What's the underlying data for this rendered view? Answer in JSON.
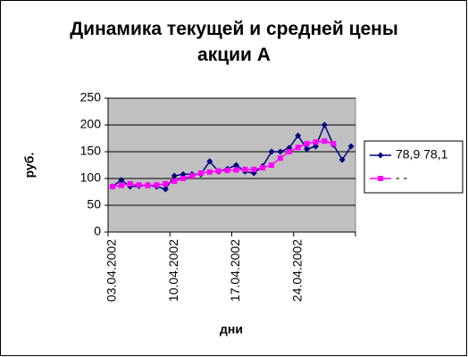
{
  "chart_data": {
    "type": "line",
    "title": "Динамика текущей и средней цены акции А",
    "y_label": "руб.",
    "x_label": "дни",
    "categories": [
      "03.04.2002",
      null,
      null,
      null,
      null,
      null,
      null,
      "10.04.2002",
      null,
      null,
      null,
      null,
      null,
      null,
      "17.04.2002",
      null,
      null,
      null,
      null,
      null,
      null,
      "24.04.2002",
      null,
      null,
      null,
      null,
      null,
      null
    ],
    "series": [
      {
        "name": "78,9 78,1",
        "color": "#000080",
        "marker": "diamond",
        "values": [
          85,
          97,
          85,
          86,
          88,
          85,
          80,
          105,
          108,
          108,
          108,
          132,
          113,
          118,
          125,
          113,
          110,
          123,
          150,
          150,
          157,
          180,
          155,
          160,
          200,
          163,
          135,
          160
        ]
      },
      {
        "name": "- -",
        "color": "#ff00ff",
        "marker": "square",
        "values": [
          85,
          87,
          90,
          88,
          87,
          88,
          90,
          95,
          100,
          105,
          110,
          112,
          114,
          115,
          116,
          117,
          117,
          120,
          125,
          138,
          150,
          158,
          165,
          168,
          170,
          165,
          null,
          null
        ]
      }
    ],
    "ylim": [
      0,
      250
    ],
    "yticks": [
      0,
      50,
      100,
      150,
      200,
      250
    ],
    "grid": true,
    "plot_background": "#c0c0c0",
    "legend": "right"
  }
}
